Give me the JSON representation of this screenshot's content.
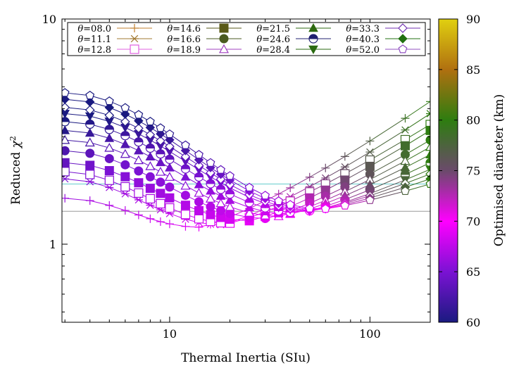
{
  "chart_data": {
    "type": "scatter",
    "title": "",
    "xlabel": "Thermal Inertia (SIu)",
    "ylabel_main": "Reduced ",
    "ylabel_sym": "χ",
    "ylabel_sup": "2",
    "x_scale": "log",
    "y_scale": "log",
    "xlim": [
      2.9,
      200
    ],
    "ylim": [
      0.45,
      10
    ],
    "x_ticks": [
      {
        "v": 10,
        "label": "10"
      },
      {
        "v": 100,
        "label": "100"
      }
    ],
    "y_ticks": [
      {
        "v": 1,
        "label": "1"
      },
      {
        "v": 10,
        "label": "10"
      }
    ],
    "legend_prefix": "θ",
    "legend_position": "top",
    "grid": false,
    "colorbar": {
      "label": "Optimised diameter (km)",
      "range": [
        60,
        90
      ],
      "ticks": [
        "60",
        "65",
        "70",
        "75",
        "80",
        "85",
        "90"
      ],
      "stops": [
        "#1a1a80",
        "#7b12d4",
        "#ff00ff",
        "#6b4a6b",
        "#2e7d10",
        "#b07010",
        "#e0d010"
      ]
    },
    "reference_lines": [
      {
        "y": 1.4,
        "color": "#999999"
      },
      {
        "y": 1.85,
        "color": "#66cccc"
      }
    ],
    "x": [
      3,
      4,
      5,
      6,
      7,
      8,
      9,
      10,
      12,
      14,
      16,
      18,
      20,
      25,
      30,
      35,
      40,
      50,
      60,
      75,
      100,
      150,
      200
    ],
    "series": [
      {
        "name": "=08.0",
        "marker": "plus",
        "y_start": 1.6,
        "y_min": 1.19,
        "x_min": 14,
        "y_end": 4.3
      },
      {
        "name": "=11.1",
        "marker": "asterisk",
        "y_start": 1.95,
        "y_min": 1.22,
        "x_min": 18,
        "y_end": 3.8
      },
      {
        "name": "=12.8",
        "marker": "square_open",
        "y_start": 2.1,
        "y_min": 1.24,
        "x_min": 20,
        "y_end": 3.4
      },
      {
        "name": "=14.6",
        "marker": "square_filled",
        "y_start": 2.3,
        "y_min": 1.27,
        "x_min": 25,
        "y_end": 3.2
      },
      {
        "name": "=16.6",
        "marker": "circle_filled",
        "y_start": 2.6,
        "y_min": 1.3,
        "x_min": 30,
        "y_end": 2.9
      },
      {
        "name": "=18.9",
        "marker": "triangle_open",
        "y_start": 2.9,
        "y_min": 1.33,
        "x_min": 35,
        "y_end": 2.7
      },
      {
        "name": "=21.5",
        "marker": "triangle_filled",
        "y_start": 3.2,
        "y_min": 1.36,
        "x_min": 40,
        "y_end": 2.5
      },
      {
        "name": "=24.6",
        "marker": "circle_half",
        "y_start": 3.5,
        "y_min": 1.38,
        "x_min": 45,
        "y_end": 2.3
      },
      {
        "name": "=28.4",
        "marker": "triangle_down",
        "y_start": 3.8,
        "y_min": 1.4,
        "x_min": 50,
        "y_end": 2.15
      },
      {
        "name": "=33.3",
        "marker": "diamond_open",
        "y_start": 4.05,
        "y_min": 1.41,
        "x_min": 52,
        "y_end": 2.05
      },
      {
        "name": "=40.3",
        "marker": "diamond_filled",
        "y_start": 4.4,
        "y_min": 1.42,
        "x_min": 55,
        "y_end": 1.95
      },
      {
        "name": "=52.0",
        "marker": "pentagon_open",
        "y_start": 4.7,
        "y_min": 1.43,
        "x_min": 58,
        "y_end": 1.85
      }
    ]
  }
}
